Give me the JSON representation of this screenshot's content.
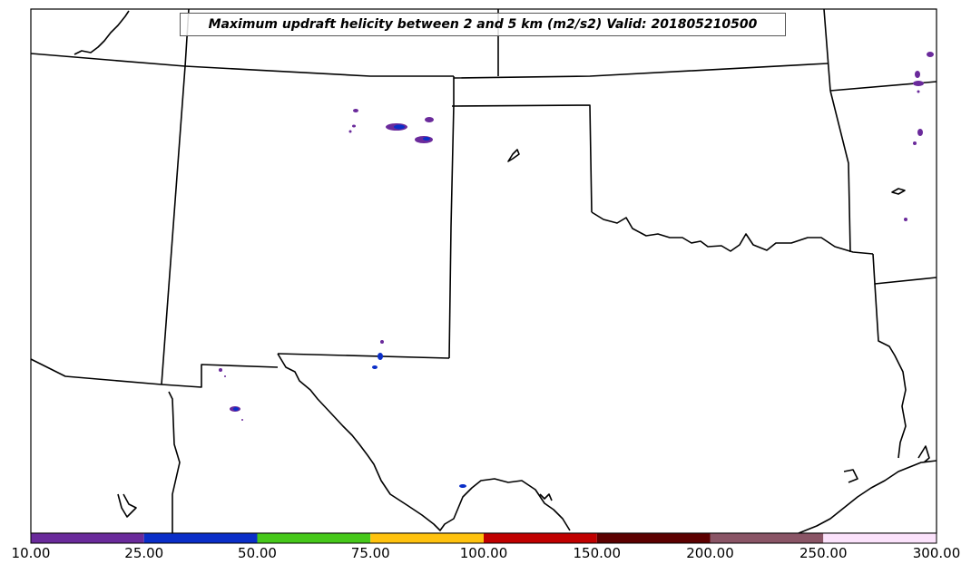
{
  "title": "Maximum updraft helicity between 2 and 5 km (m2/s2) Valid: 201805210500",
  "colorbar": {
    "ticks": [
      "10.00",
      "25.00",
      "50.00",
      "75.00",
      "100.00",
      "150.00",
      "200.00",
      "250.00",
      "300.00"
    ],
    "bins": [
      {
        "from": 10,
        "to": 25,
        "color": "#6a2a9b"
      },
      {
        "from": 25,
        "to": 50,
        "color": "#0a2ec8"
      },
      {
        "from": 50,
        "to": 75,
        "color": "#46c81a"
      },
      {
        "from": 75,
        "to": 100,
        "color": "#ffc20e"
      },
      {
        "from": 100,
        "to": 150,
        "color": "#c00000"
      },
      {
        "from": 150,
        "to": 200,
        "color": "#5c0000"
      },
      {
        "from": 200,
        "to": 250,
        "color": "#8a5566"
      },
      {
        "from": 250,
        "to": 300,
        "color": "#fbe2fb"
      }
    ]
  }
}
